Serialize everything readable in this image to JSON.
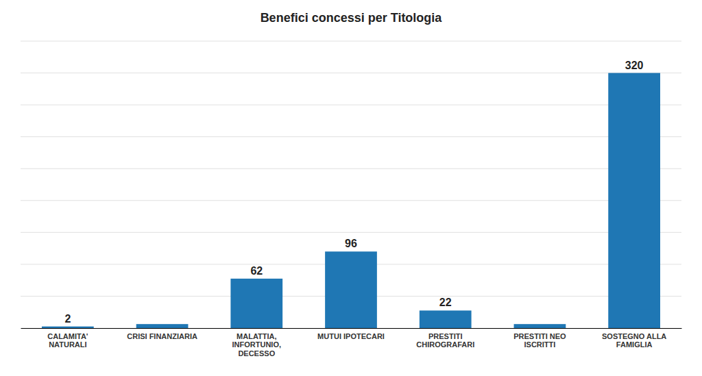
{
  "chart_data": {
    "type": "bar",
    "title": "Benefici concessi per Titologia",
    "categories": [
      "CALAMITA'\nNATURALI",
      "CRISI FINANZIARIA",
      "MALATTIA,\nINFORTUNIO,\nDECESSO",
      "MUTUI IPOTECARI",
      "PRESTITI\nCHIROGRAFARI",
      "PRESTITI NEO\nISCRITTI",
      "SOSTEGNO ALLA\nFAMIGLIA"
    ],
    "values": [
      2,
      5,
      62,
      96,
      22,
      5,
      320
    ],
    "value_labels": [
      "2",
      null,
      "62",
      "96",
      "22",
      null,
      "320"
    ],
    "data_labels": true,
    "ylim": [
      0,
      360
    ],
    "yticks": [
      40,
      80,
      120,
      160,
      200,
      240,
      280,
      320,
      360
    ],
    "grid": true,
    "tick_labels": "x"
  }
}
